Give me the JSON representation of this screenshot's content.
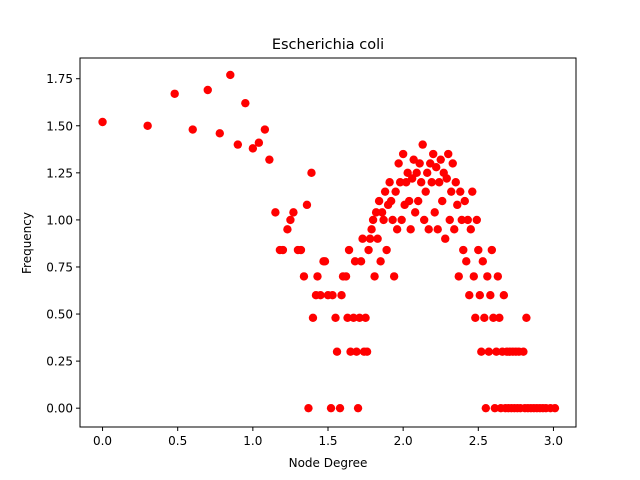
{
  "chart_data": {
    "type": "scatter",
    "title": "Escherichia coli",
    "xlabel": "Node Degree",
    "ylabel": "Frequency",
    "xlim": [
      -0.15,
      3.15
    ],
    "ylim": [
      -0.1,
      1.86
    ],
    "x_ticks": [
      "0.0",
      "0.5",
      "1.0",
      "1.5",
      "2.0",
      "2.5",
      "3.0"
    ],
    "x_tick_values": [
      0,
      0.5,
      1.0,
      1.5,
      2.0,
      2.5,
      3.0
    ],
    "y_ticks": [
      "0.00",
      "0.25",
      "0.50",
      "0.75",
      "1.00",
      "1.25",
      "1.50",
      "1.75"
    ],
    "y_tick_values": [
      0,
      0.25,
      0.5,
      0.75,
      1.0,
      1.25,
      1.5,
      1.75
    ],
    "grid": false,
    "marker_color": "#ff0000",
    "series": [
      {
        "points": [
          [
            0.0,
            1.52
          ],
          [
            0.3,
            1.5
          ],
          [
            0.48,
            1.67
          ],
          [
            0.6,
            1.48
          ],
          [
            0.7,
            1.69
          ],
          [
            0.78,
            1.46
          ],
          [
            0.85,
            1.77
          ],
          [
            0.9,
            1.4
          ],
          [
            0.95,
            1.62
          ],
          [
            1.0,
            1.38
          ],
          [
            1.04,
            1.41
          ],
          [
            1.08,
            1.48
          ],
          [
            1.11,
            1.32
          ],
          [
            1.15,
            1.04
          ],
          [
            1.18,
            0.84
          ],
          [
            1.2,
            0.84
          ],
          [
            1.23,
            0.95
          ],
          [
            1.25,
            1.0
          ],
          [
            1.27,
            1.04
          ],
          [
            1.3,
            0.84
          ],
          [
            1.32,
            0.84
          ],
          [
            1.34,
            0.7
          ],
          [
            1.36,
            1.08
          ],
          [
            1.37,
            0.0
          ],
          [
            1.39,
            1.25
          ],
          [
            1.4,
            0.48
          ],
          [
            1.42,
            0.6
          ],
          [
            1.43,
            0.7
          ],
          [
            1.45,
            0.6
          ],
          [
            1.47,
            0.78
          ],
          [
            1.48,
            0.78
          ],
          [
            1.5,
            0.6
          ],
          [
            1.52,
            0.0
          ],
          [
            1.53,
            0.6
          ],
          [
            1.55,
            0.48
          ],
          [
            1.56,
            0.3
          ],
          [
            1.58,
            0.0
          ],
          [
            1.59,
            0.6
          ],
          [
            1.6,
            0.7
          ],
          [
            1.62,
            0.7
          ],
          [
            1.63,
            0.48
          ],
          [
            1.64,
            0.84
          ],
          [
            1.65,
            0.3
          ],
          [
            1.67,
            0.48
          ],
          [
            1.68,
            0.78
          ],
          [
            1.69,
            0.3
          ],
          [
            1.7,
            0.0
          ],
          [
            1.71,
            0.48
          ],
          [
            1.72,
            0.78
          ],
          [
            1.73,
            0.9
          ],
          [
            1.74,
            0.3
          ],
          [
            1.75,
            0.48
          ],
          [
            1.76,
            0.3
          ],
          [
            1.77,
            0.84
          ],
          [
            1.78,
            0.9
          ],
          [
            1.79,
            0.95
          ],
          [
            1.8,
            1.0
          ],
          [
            1.81,
            0.7
          ],
          [
            1.82,
            1.04
          ],
          [
            1.83,
            0.9
          ],
          [
            1.84,
            1.1
          ],
          [
            1.85,
            0.78
          ],
          [
            1.86,
            1.04
          ],
          [
            1.87,
            1.0
          ],
          [
            1.88,
            1.15
          ],
          [
            1.89,
            0.84
          ],
          [
            1.9,
            1.08
          ],
          [
            1.91,
            1.2
          ],
          [
            1.92,
            1.1
          ],
          [
            1.93,
            1.0
          ],
          [
            1.94,
            0.7
          ],
          [
            1.95,
            1.15
          ],
          [
            1.96,
            0.95
          ],
          [
            1.97,
            1.3
          ],
          [
            1.98,
            1.2
          ],
          [
            1.99,
            1.0
          ],
          [
            2.0,
            1.35
          ],
          [
            2.01,
            1.08
          ],
          [
            2.02,
            1.2
          ],
          [
            2.03,
            1.25
          ],
          [
            2.04,
            1.1
          ],
          [
            2.05,
            0.95
          ],
          [
            2.06,
            1.22
          ],
          [
            2.07,
            1.32
          ],
          [
            2.08,
            1.04
          ],
          [
            2.09,
            1.25
          ],
          [
            2.1,
            1.1
          ],
          [
            2.11,
            1.3
          ],
          [
            2.12,
            1.2
          ],
          [
            2.13,
            1.4
          ],
          [
            2.14,
            1.0
          ],
          [
            2.15,
            1.15
          ],
          [
            2.16,
            1.25
          ],
          [
            2.17,
            0.95
          ],
          [
            2.18,
            1.3
          ],
          [
            2.19,
            1.2
          ],
          [
            2.2,
            1.35
          ],
          [
            2.21,
            1.04
          ],
          [
            2.22,
            1.28
          ],
          [
            2.23,
            0.95
          ],
          [
            2.24,
            1.2
          ],
          [
            2.25,
            1.32
          ],
          [
            2.26,
            1.1
          ],
          [
            2.27,
            1.25
          ],
          [
            2.28,
            0.9
          ],
          [
            2.29,
            1.22
          ],
          [
            2.3,
            1.35
          ],
          [
            2.31,
            1.0
          ],
          [
            2.32,
            1.15
          ],
          [
            2.33,
            1.3
          ],
          [
            2.34,
            0.95
          ],
          [
            2.35,
            1.2
          ],
          [
            2.36,
            1.08
          ],
          [
            2.37,
            0.7
          ],
          [
            2.38,
            1.15
          ],
          [
            2.39,
            1.0
          ],
          [
            2.4,
            0.84
          ],
          [
            2.41,
            1.1
          ],
          [
            2.42,
            0.78
          ],
          [
            2.43,
            1.0
          ],
          [
            2.44,
            0.6
          ],
          [
            2.45,
            0.95
          ],
          [
            2.46,
            1.15
          ],
          [
            2.47,
            0.7
          ],
          [
            2.48,
            0.48
          ],
          [
            2.49,
            1.0
          ],
          [
            2.5,
            0.84
          ],
          [
            2.51,
            0.6
          ],
          [
            2.52,
            0.3
          ],
          [
            2.53,
            0.78
          ],
          [
            2.54,
            0.48
          ],
          [
            2.55,
            0.0
          ],
          [
            2.56,
            0.7
          ],
          [
            2.57,
            0.3
          ],
          [
            2.58,
            0.6
          ],
          [
            2.59,
            0.84
          ],
          [
            2.6,
            0.48
          ],
          [
            2.61,
            0.0
          ],
          [
            2.62,
            0.3
          ],
          [
            2.63,
            0.7
          ],
          [
            2.64,
            0.48
          ],
          [
            2.65,
            0.0
          ],
          [
            2.66,
            0.3
          ],
          [
            2.67,
            0.6
          ],
          [
            2.68,
            0.0
          ],
          [
            2.69,
            0.3
          ],
          [
            2.7,
            0.0
          ],
          [
            2.71,
            0.3
          ],
          [
            2.72,
            0.0
          ],
          [
            2.73,
            0.3
          ],
          [
            2.74,
            0.0
          ],
          [
            2.75,
            0.3
          ],
          [
            2.76,
            0.0
          ],
          [
            2.77,
            0.3
          ],
          [
            2.78,
            0.0
          ],
          [
            2.8,
            0.3
          ],
          [
            2.81,
            0.0
          ],
          [
            2.82,
            0.48
          ],
          [
            2.83,
            0.0
          ],
          [
            2.85,
            0.0
          ],
          [
            2.87,
            0.0
          ],
          [
            2.89,
            0.0
          ],
          [
            2.91,
            0.0
          ],
          [
            2.93,
            0.0
          ],
          [
            2.95,
            0.0
          ],
          [
            2.98,
            0.0
          ],
          [
            3.01,
            0.0
          ]
        ]
      }
    ]
  }
}
